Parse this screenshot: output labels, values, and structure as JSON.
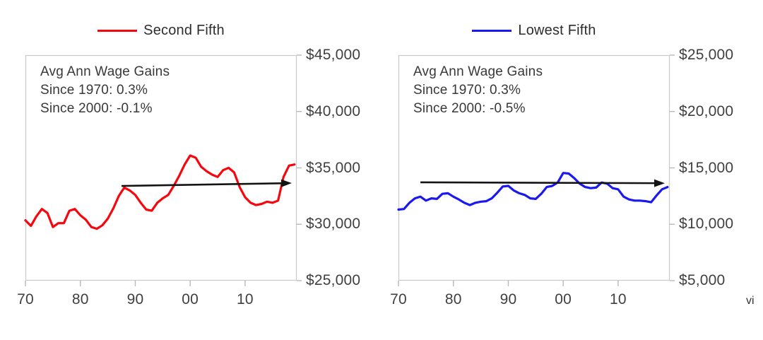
{
  "footer": {
    "watermark": "vi"
  },
  "style": {
    "border_color": "#c9c9c9",
    "tick_color": "#b9b9b9",
    "arrow_color": "#141414",
    "red": "#f6070d",
    "blue": "#1a19f0"
  },
  "chart_data": [
    {
      "type": "line",
      "legend_label": "Second Fifth",
      "annotation": [
        "Avg Ann Wage Gains",
        "Since 1970: 0.3%",
        "Since 2000: -0.1%"
      ],
      "x": [
        1970,
        1971,
        1972,
        1973,
        1974,
        1975,
        1976,
        1977,
        1978,
        1979,
        1980,
        1981,
        1982,
        1983,
        1984,
        1985,
        1986,
        1987,
        1988,
        1989,
        1990,
        1991,
        1992,
        1993,
        1994,
        1995,
        1996,
        1997,
        1998,
        1999,
        2000,
        2001,
        2002,
        2003,
        2004,
        2005,
        2006,
        2007,
        2008,
        2009,
        2010,
        2011,
        2012,
        2013,
        2014,
        2015,
        2016,
        2017,
        2018,
        2019
      ],
      "series": [
        {
          "name": "Second Fifth",
          "color": "#f6070d",
          "values": [
            30350,
            29850,
            30700,
            31350,
            31000,
            29750,
            30100,
            30100,
            31200,
            31350,
            30800,
            30400,
            29750,
            29600,
            29900,
            30500,
            31400,
            32500,
            33250,
            33000,
            32600,
            31900,
            31300,
            31200,
            31900,
            32300,
            32600,
            33400,
            34300,
            35300,
            36100,
            35900,
            35100,
            34700,
            34400,
            34200,
            34800,
            35000,
            34600,
            33300,
            32400,
            31900,
            31700,
            31800,
            32000,
            31900,
            32100,
            34200,
            35200,
            35300
          ]
        }
      ],
      "ylim": [
        25000,
        45000
      ],
      "xlim": [
        1970,
        2019.4
      ],
      "y_ticks": [
        {
          "value": 45000,
          "label": "$45,000"
        },
        {
          "value": 40000,
          "label": "$40,000"
        },
        {
          "value": 35000,
          "label": "$35,000"
        },
        {
          "value": 30000,
          "label": "$30,000"
        },
        {
          "value": 25000,
          "label": "$25,000"
        }
      ],
      "x_ticks": [
        {
          "value": 1970,
          "label": "70"
        },
        {
          "value": 1980,
          "label": "80"
        },
        {
          "value": 1990,
          "label": "90"
        },
        {
          "value": 2000,
          "label": "00"
        },
        {
          "value": 2010,
          "label": "10"
        }
      ],
      "trend_arrow": {
        "x1": 1987.5,
        "y1": 33400,
        "x2": 2018.5,
        "y2": 33650
      },
      "grid": false,
      "legend_position": "top-center"
    },
    {
      "type": "line",
      "legend_label": "Lowest Fifth",
      "annotation": [
        "Avg Ann Wage Gains",
        "Since 1970: 0.3%",
        "Since 2000: -0.5%"
      ],
      "x": [
        1970,
        1971,
        1972,
        1973,
        1974,
        1975,
        1976,
        1977,
        1978,
        1979,
        1980,
        1981,
        1982,
        1983,
        1984,
        1985,
        1986,
        1987,
        1988,
        1989,
        1990,
        1991,
        1992,
        1993,
        1994,
        1995,
        1996,
        1997,
        1998,
        1999,
        2000,
        2001,
        2002,
        2003,
        2004,
        2005,
        2006,
        2007,
        2008,
        2009,
        2010,
        2011,
        2012,
        2013,
        2014,
        2015,
        2016,
        2017,
        2018,
        2019
      ],
      "series": [
        {
          "name": "Lowest Fifth",
          "color": "#1a19f0",
          "values": [
            11300,
            11350,
            11900,
            12300,
            12450,
            12100,
            12300,
            12250,
            12700,
            12750,
            12450,
            12200,
            11900,
            11700,
            11900,
            12000,
            12050,
            12300,
            12800,
            13350,
            13400,
            13000,
            12750,
            12600,
            12300,
            12250,
            12700,
            13300,
            13400,
            13700,
            14550,
            14500,
            14100,
            13600,
            13300,
            13200,
            13250,
            13700,
            13600,
            13200,
            13100,
            12450,
            12200,
            12100,
            12100,
            12050,
            11950,
            12550,
            13100,
            13300
          ]
        }
      ],
      "ylim": [
        5000,
        25000
      ],
      "xlim": [
        1970,
        2019.4
      ],
      "y_ticks": [
        {
          "value": 25000,
          "label": "$25,000"
        },
        {
          "value": 20000,
          "label": "$20,000"
        },
        {
          "value": 15000,
          "label": "$15,000"
        },
        {
          "value": 10000,
          "label": "$10,000"
        },
        {
          "value": 5000,
          "label": "$5,000"
        }
      ],
      "x_ticks": [
        {
          "value": 1970,
          "label": "70"
        },
        {
          "value": 1980,
          "label": "80"
        },
        {
          "value": 1990,
          "label": "90"
        },
        {
          "value": 2000,
          "label": "00"
        },
        {
          "value": 2010,
          "label": "10"
        }
      ],
      "trend_arrow": {
        "x1": 1974,
        "y1": 13720,
        "x2": 2018.5,
        "y2": 13640
      },
      "grid": false,
      "legend_position": "top-center"
    }
  ]
}
